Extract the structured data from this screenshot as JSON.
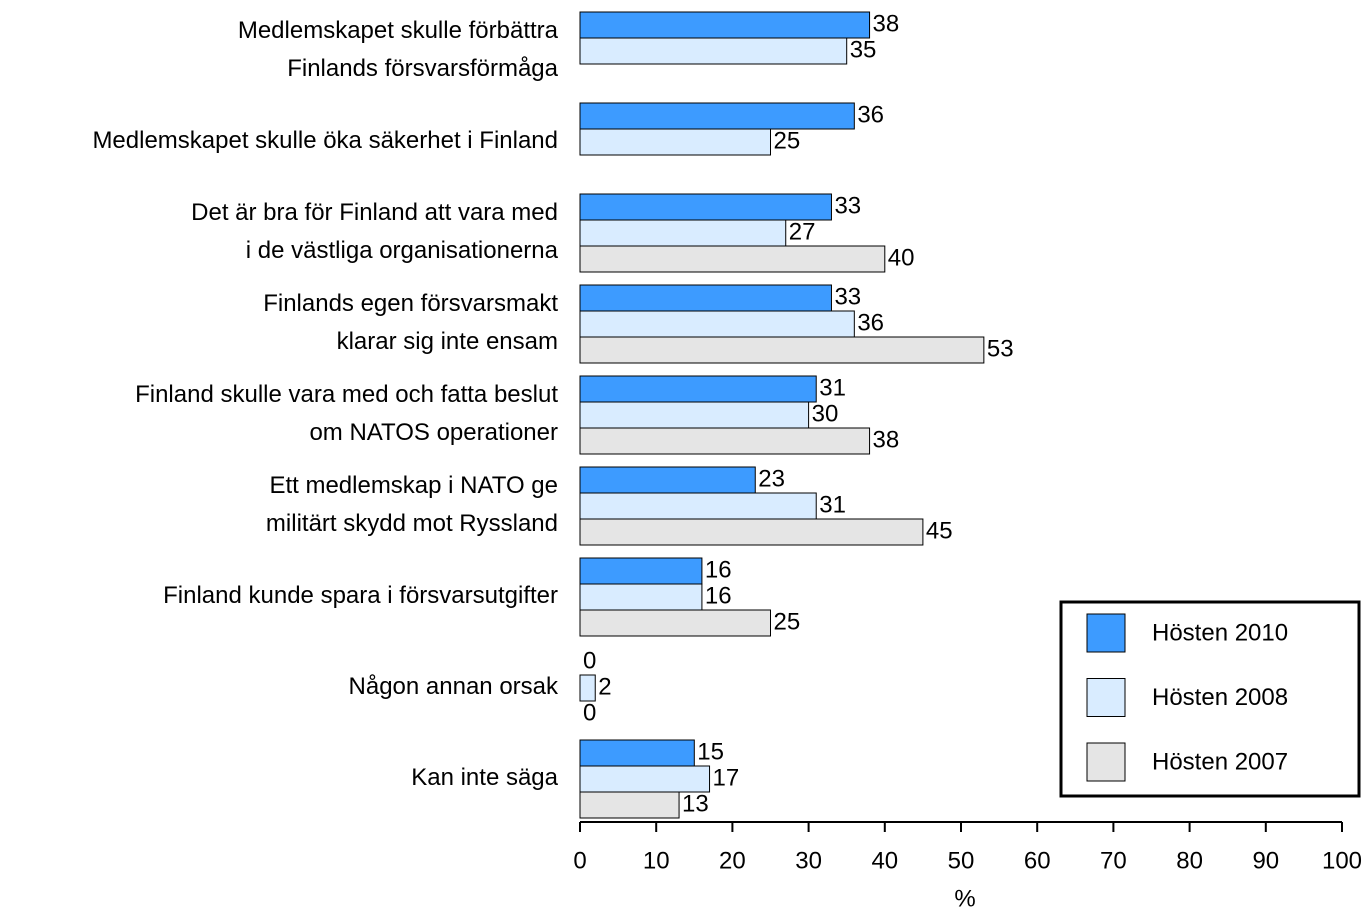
{
  "chart_data": {
    "type": "hbar",
    "categories": [
      "Medlemskapet skulle förbättra\nFinlands försvarsförmåga",
      "Medlemskapet skulle öka säkerhet i Finland",
      "Det är bra för Finland att vara med\ni de västliga organisationerna",
      "Finlands egen försvarsmakt\nklarar sig inte ensam",
      "Finland skulle vara med och fatta beslut\nom NATOS operationer",
      "Ett medlemskap i NATO ge\nmilitärt skydd mot Ryssland",
      "Finland kunde spara i försvarsutgifter",
      "Någon annan orsak",
      "Kan inte säga"
    ],
    "series": [
      {
        "name": "Hösten 2010",
        "color": "#3d9bff",
        "values": [
          38,
          36,
          33,
          33,
          31,
          23,
          16,
          0,
          15
        ]
      },
      {
        "name": "Hösten 2008",
        "color": "#d9ecff",
        "values": [
          35,
          25,
          27,
          36,
          30,
          31,
          16,
          2,
          17
        ]
      },
      {
        "name": "Hösten 2007",
        "color": "#e5e5e5",
        "values": [
          null,
          null,
          40,
          53,
          38,
          45,
          25,
          0,
          13
        ]
      }
    ],
    "xlabel": "%",
    "xlim": [
      0,
      100
    ],
    "xticks": [
      0,
      10,
      20,
      30,
      40,
      50,
      60,
      70,
      80,
      90,
      100
    ],
    "legend": "lower right"
  }
}
